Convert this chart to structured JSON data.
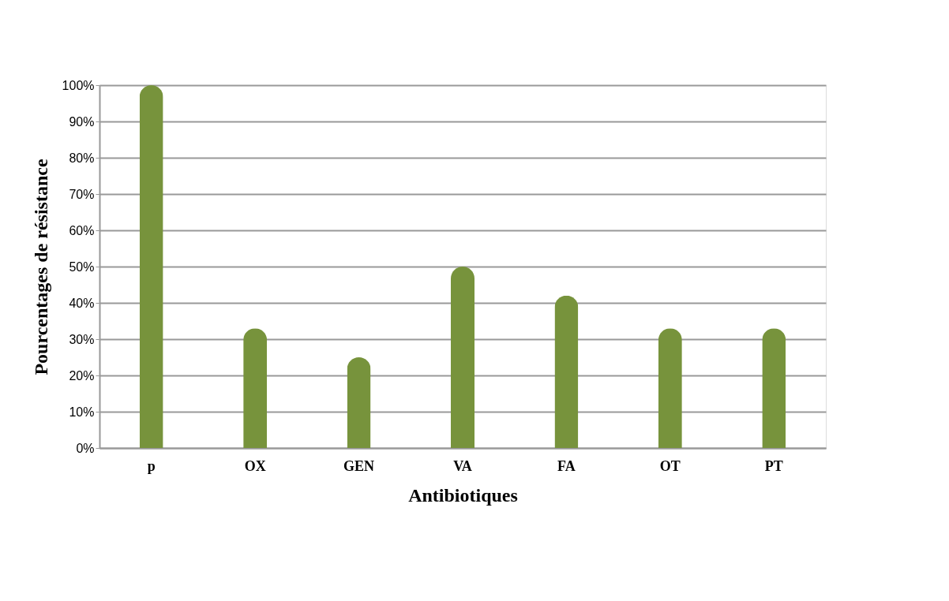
{
  "chart_data": {
    "type": "bar",
    "xlabel": "Antibiotiques",
    "ylabel": "Pourcentages de résistance",
    "categories": [
      "p",
      "OX",
      "GEN",
      "VA",
      "FA",
      "OT",
      "PT"
    ],
    "values": [
      100,
      33,
      25,
      50,
      42,
      33,
      33
    ],
    "color": "#77933c",
    "ylim": [
      0,
      100
    ],
    "yticks": [
      {
        "value": 0,
        "label": "0%"
      },
      {
        "value": 10,
        "label": "10%"
      },
      {
        "value": 20,
        "label": "20%"
      },
      {
        "value": 30,
        "label": "30%"
      },
      {
        "value": 40,
        "label": "40%"
      },
      {
        "value": 50,
        "label": "50%"
      },
      {
        "value": 60,
        "label": "60%"
      },
      {
        "value": 70,
        "label": "70%"
      },
      {
        "value": 80,
        "label": "80%"
      },
      {
        "value": 90,
        "label": "90%"
      },
      {
        "value": 100,
        "label": "100%"
      }
    ],
    "grid": "y"
  }
}
